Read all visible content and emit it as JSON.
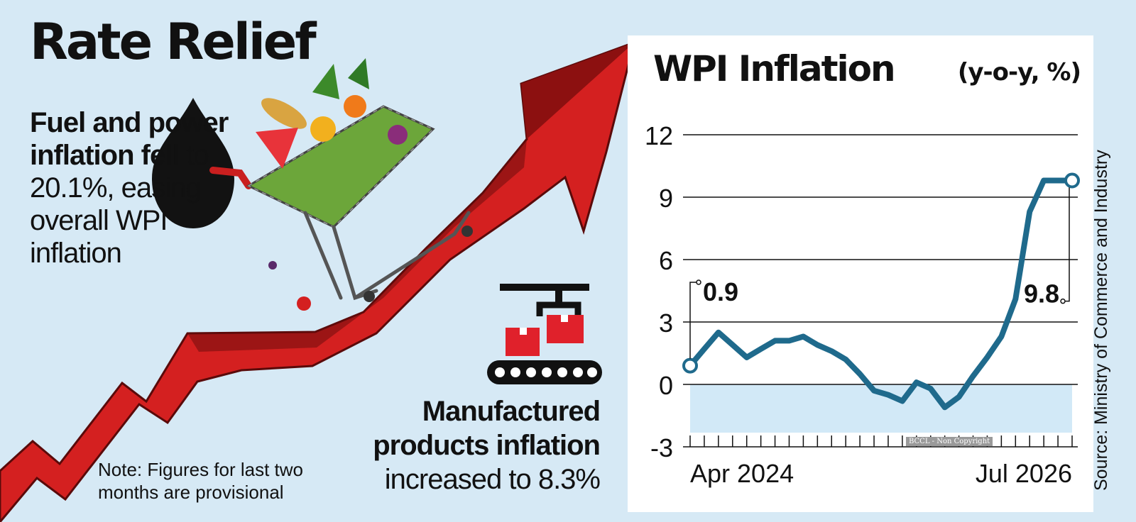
{
  "infographic": {
    "headline": "Rate Relief",
    "fuel_note": {
      "lead": "Fuel and power inflation fell",
      "rest": " to 20.1%, easing overall WPI inflation"
    },
    "manufactured_note": {
      "lead": "Manufactured products inflation",
      "rest": "increased to 8.3%"
    },
    "footnote": "Note: Figures for last two months are provisional",
    "source": "Source: Ministry of Commerce and Industry",
    "copyright": "BCCL - Non Copyright",
    "icons": [
      "oil-drop-icon",
      "shopping-cart-icon",
      "conveyor-belt-icon",
      "rising-arrow-icon"
    ],
    "colors": {
      "background": "#d6e9f5",
      "arrow": "#d42020",
      "line": "#1f6a8c",
      "negative_zone": "#c7e3f5"
    }
  },
  "chart_data": {
    "type": "line",
    "title": "WPI Inflation",
    "ylabel": "(y-o-y, %)",
    "xlabel": "",
    "ylim": [
      -3,
      12
    ],
    "yticks": [
      "-3",
      "0",
      "3",
      "6",
      "9",
      "12"
    ],
    "x_tick_labels": [
      "Apr 2024",
      "Jul 2026"
    ],
    "x": [
      "Apr 2024",
      "May 2024",
      "Jun 2024",
      "Jul 2024",
      "Aug 2024",
      "Sep 2024",
      "Oct 2024",
      "Nov 2024",
      "Dec 2024",
      "Jan 2025",
      "Feb 2025",
      "Mar 2025",
      "Apr 2025",
      "May 2025",
      "Jun 2025",
      "Jul 2025",
      "Aug 2025",
      "Sep 2025",
      "Oct 2025",
      "Nov 2025",
      "Dec 2025",
      "Jan 2026",
      "Feb 2026",
      "Mar 2026",
      "Apr 2026",
      "May 2026",
      "Jun 2026",
      "Jul 2026"
    ],
    "series": [
      {
        "values": [
          0.9,
          1.7,
          2.5,
          1.9,
          1.3,
          1.7,
          2.1,
          2.1,
          2.3,
          1.9,
          1.6,
          1.2,
          0.5,
          -0.3,
          -0.5,
          -0.8,
          0.1,
          -0.2,
          -1.1,
          -0.6,
          0.4,
          1.3,
          2.3,
          4.1,
          8.3,
          9.8,
          9.8,
          9.8
        ]
      }
    ],
    "annotations": [
      {
        "x": "Apr 2024",
        "text": "0.9"
      },
      {
        "x": "Jul 2026",
        "text": "9.8"
      }
    ],
    "grid": true,
    "negative_region_shaded": true
  }
}
